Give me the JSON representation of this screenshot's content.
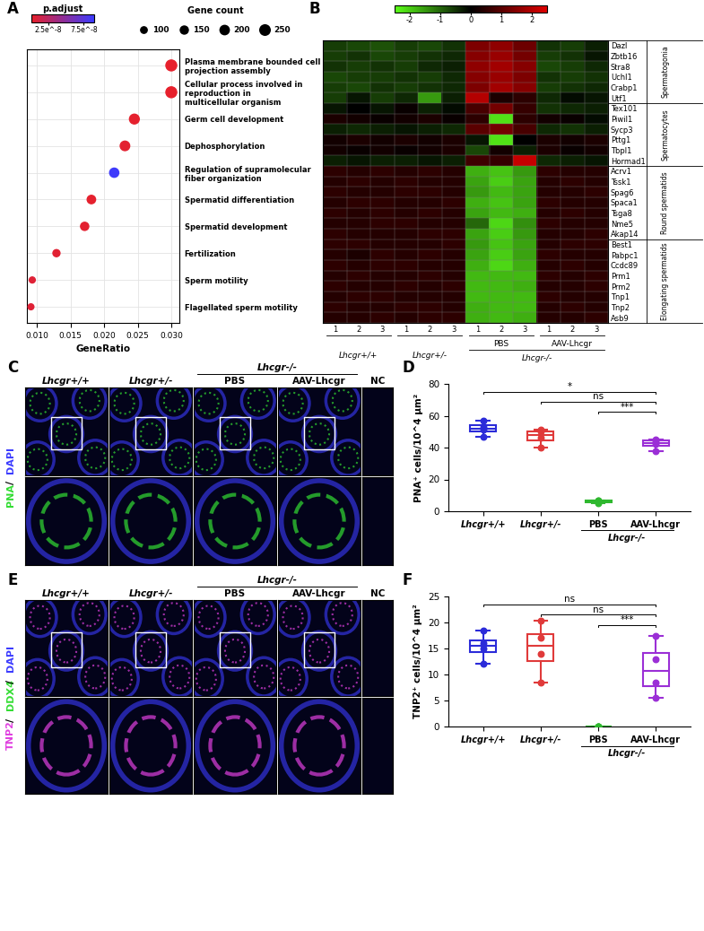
{
  "chart_data": [
    {
      "panel": "A",
      "type": "dot",
      "x_label": "GeneRatio",
      "categories": [
        "Plasma membrane bounded cell projection assembly",
        "Cellular process involved in reproduction in multicellular organism",
        "Germ cell development",
        "Dephosphorylation",
        "Regulation of supramolecular fiber organization",
        "Spermatid differentiation",
        "Spermatid development",
        "Fertilization",
        "Sperm motility",
        "Flagellated sperm motility"
      ],
      "values": [
        0.03,
        0.03,
        0.0245,
        0.0231,
        0.0215,
        0.0181,
        0.0171,
        0.0129,
        0.0093,
        0.0091
      ],
      "gene_count": [
        270,
        270,
        220,
        208,
        194,
        163,
        154,
        116,
        84,
        82
      ],
      "p_adjust": [
        2e-09,
        2e-09,
        3e-09,
        4e-09,
        8.8e-08,
        3e-09,
        4e-09,
        5e-09,
        6e-09,
        6e-09
      ],
      "color_legend_title": "p.adjust",
      "color_scale": [
        "#e8202a",
        "#3b3bff"
      ],
      "color_range": [
        1e-09,
        9e-08
      ],
      "color_ticks": [
        {
          "value": 2.5e-08,
          "label": "2.5e^-8"
        },
        {
          "value": 7.5e-08,
          "label": "7.5e^-8"
        }
      ],
      "size_legend_title": "Gene count",
      "size_legend": [
        100,
        150,
        200,
        250
      ],
      "xlim": [
        0.0085,
        0.0312
      ],
      "xticks": [
        {
          "value": 0.01,
          "label": "0.010"
        },
        {
          "value": 0.015,
          "label": "0.015"
        },
        {
          "value": 0.02,
          "label": "0.020"
        },
        {
          "value": 0.025,
          "label": "0.025"
        },
        {
          "value": 0.03,
          "label": "0.030"
        }
      ],
      "grid": true
    },
    {
      "panel": "B",
      "type": "heatmap",
      "color_scale": [
        "#5cff1a",
        "#000000",
        "#e00000"
      ],
      "color_range": [
        -2.5,
        2.5
      ],
      "color_ticks": [
        -2,
        -1,
        0,
        1,
        2
      ],
      "groups": [
        {
          "name": "Lhcgr+/+",
          "columns": [
            "1",
            "2",
            "3"
          ]
        },
        {
          "name": "Lhcgr+/-",
          "columns": [
            "1",
            "2",
            "3"
          ]
        },
        {
          "name": "PBS",
          "columns": [
            "1",
            "2",
            "3"
          ]
        },
        {
          "name": "AAV-Lhcgr",
          "columns": [
            "1",
            "2",
            "3"
          ]
        }
      ],
      "supergroup": {
        "name": "Lhcgr-/-",
        "groups": [
          "PBS",
          "AAV-Lhcgr"
        ]
      },
      "row_groups": [
        {
          "name": "Spermatogonia",
          "genes": [
            "Dazl",
            "Zbtb16",
            "Stra8",
            "Uchl1",
            "Crabp1",
            "Utf1"
          ],
          "cells": [
            [
              -0.6,
              -0.7,
              -0.8,
              -0.6,
              -0.7,
              -0.5,
              1.4,
              1.6,
              1.2,
              -0.5,
              -0.6,
              -0.3
            ],
            [
              -0.6,
              -0.5,
              -0.7,
              -0.6,
              -0.5,
              -0.4,
              1.5,
              1.7,
              1.3,
              -0.6,
              -0.5,
              -0.2
            ],
            [
              -0.5,
              -0.6,
              -0.5,
              -0.6,
              -0.4,
              -0.3,
              1.6,
              1.8,
              1.5,
              -0.7,
              -0.6,
              -0.4
            ],
            [
              -0.7,
              -0.6,
              -0.6,
              -0.5,
              -0.6,
              -0.4,
              1.5,
              1.7,
              1.4,
              -0.5,
              -0.6,
              -0.5
            ],
            [
              -0.6,
              -0.7,
              -0.5,
              -0.6,
              -0.5,
              -0.4,
              1.4,
              1.8,
              1.5,
              -0.6,
              -0.5,
              -0.4
            ],
            [
              -0.6,
              -0.2,
              -0.6,
              -0.4,
              -1.5,
              -0.3,
              2.0,
              0.3,
              0.5,
              -0.4,
              -0.1,
              -0.2
            ]
          ]
        },
        {
          "name": "Spermatocytes",
          "genes": [
            "Tex101",
            "Piwil1",
            "Sycp3",
            "Pttg1",
            "Tbpl1",
            "Hormad1"
          ],
          "cells": [
            [
              -0.2,
              0.0,
              -0.2,
              0.1,
              -0.3,
              -0.1,
              0.8,
              1.3,
              0.6,
              -0.5,
              -0.4,
              -0.3
            ],
            [
              0.3,
              0.2,
              0.1,
              0.2,
              0.3,
              0.1,
              0.5,
              -2.2,
              0.5,
              0.2,
              0.1,
              -0.1
            ],
            [
              -0.3,
              -0.4,
              -0.3,
              -0.2,
              -0.3,
              -0.4,
              1.0,
              1.3,
              0.8,
              -0.4,
              -0.5,
              -0.3
            ],
            [
              0.2,
              0.3,
              0.2,
              0.3,
              0.2,
              0.3,
              -0.2,
              -2.2,
              0.0,
              0.3,
              0.2,
              0.3
            ],
            [
              0.2,
              0.1,
              0.2,
              0.1,
              0.2,
              0.3,
              -0.7,
              0.2,
              -0.3,
              0.3,
              0.1,
              0.2
            ],
            [
              -0.3,
              -0.2,
              -0.3,
              -0.3,
              -0.2,
              -0.3,
              0.7,
              0.6,
              2.2,
              -0.4,
              -0.3,
              -0.2
            ]
          ]
        },
        {
          "name": "Round spermatids",
          "genes": [
            "Acrv1",
            "Tssk1",
            "Spag6",
            "Spaca1",
            "Tsga8",
            "Nme5",
            "Akap14"
          ],
          "cells": [
            [
              0.5,
              0.4,
              0.5,
              0.4,
              0.5,
              0.4,
              -1.7,
              -1.9,
              -1.5,
              0.5,
              0.4,
              0.4
            ],
            [
              0.4,
              0.5,
              0.4,
              0.5,
              0.4,
              0.4,
              -1.6,
              -2.0,
              -1.6,
              0.4,
              0.5,
              0.4
            ],
            [
              0.5,
              0.4,
              0.4,
              0.5,
              0.5,
              0.4,
              -1.5,
              -1.8,
              -1.6,
              0.4,
              0.4,
              0.5
            ],
            [
              0.4,
              0.5,
              0.5,
              0.4,
              0.4,
              0.5,
              -1.7,
              -1.9,
              -1.6,
              0.5,
              0.4,
              0.4
            ],
            [
              0.5,
              0.4,
              0.5,
              0.4,
              0.5,
              0.4,
              -1.6,
              -1.8,
              -1.7,
              0.4,
              0.5,
              0.4
            ],
            [
              0.4,
              0.4,
              0.5,
              0.5,
              0.4,
              0.4,
              -1.0,
              -2.1,
              -1.4,
              0.5,
              0.4,
              0.4
            ],
            [
              0.5,
              0.4,
              0.4,
              0.4,
              0.5,
              0.5,
              -1.6,
              -2.0,
              -1.5,
              0.4,
              0.4,
              0.5
            ]
          ]
        },
        {
          "name": "Elongating spermatids",
          "genes": [
            "Best1",
            "Pabpc1",
            "Ccdc89",
            "Prm1",
            "Prm2",
            "Tnp1",
            "Tnp2",
            "Asb9"
          ],
          "cells": [
            [
              0.5,
              0.5,
              0.4,
              0.4,
              0.4,
              0.5,
              -1.5,
              -1.9,
              -1.6,
              0.4,
              0.5,
              0.5
            ],
            [
              0.4,
              0.3,
              0.5,
              0.4,
              0.5,
              0.4,
              -1.6,
              -2.0,
              -1.6,
              0.5,
              0.4,
              0.4
            ],
            [
              0.5,
              0.4,
              0.5,
              0.5,
              0.4,
              0.4,
              -1.7,
              -2.1,
              -1.7,
              0.4,
              0.5,
              0.4
            ],
            [
              0.4,
              0.5,
              0.4,
              0.4,
              0.5,
              0.4,
              -1.8,
              -1.8,
              -1.8,
              0.5,
              0.4,
              0.5
            ],
            [
              0.5,
              0.4,
              0.4,
              0.5,
              0.4,
              0.5,
              -1.8,
              -1.8,
              -1.7,
              0.4,
              0.4,
              0.5
            ],
            [
              0.4,
              0.5,
              0.5,
              0.4,
              0.4,
              0.4,
              -1.8,
              -1.8,
              -1.8,
              0.5,
              0.4,
              0.4
            ],
            [
              0.5,
              0.4,
              0.4,
              0.5,
              0.5,
              0.4,
              -1.7,
              -1.8,
              -1.8,
              0.4,
              0.5,
              0.4
            ],
            [
              0.4,
              0.4,
              0.5,
              0.4,
              0.5,
              0.5,
              -1.7,
              -1.8,
              -1.7,
              0.4,
              0.4,
              0.5
            ]
          ]
        }
      ]
    },
    {
      "panel": "C",
      "type": "image_grid",
      "stains": [
        {
          "name": "PNA",
          "color": "#33dd33"
        },
        {
          "name": "DAPI",
          "color": "#3b3bff"
        }
      ],
      "separator": "/",
      "columns": [
        "Lhcgr+/+",
        "Lhcgr+/-",
        "PBS",
        "AAV-Lhcgr",
        "NC"
      ],
      "supergroup": {
        "name": "Lhcgr-/-",
        "columns": [
          "PBS",
          "AAV-Lhcgr"
        ]
      }
    },
    {
      "panel": "D",
      "type": "box",
      "y_label": "PNA⁺ cells/10^4 μm²",
      "categories": [
        "Lhcgr+/+",
        "Lhcgr+/-",
        "PBS",
        "AAV-Lhcgr"
      ],
      "supergroup": {
        "name": "Lhcgr-/-",
        "columns": [
          "PBS",
          "AAV-Lhcgr"
        ]
      },
      "values": [
        [
          47,
          51,
          53,
          57
        ],
        [
          40,
          46,
          50,
          51
        ],
        [
          5,
          6,
          6.5,
          7
        ],
        [
          38,
          42,
          44,
          45
        ]
      ],
      "colors": [
        "#2b2bd9",
        "#e03a3a",
        "#2fb82f",
        "#9b2fd6"
      ],
      "ylim": [
        0,
        80
      ],
      "yticks": [
        0,
        20,
        40,
        60,
        80
      ],
      "comparisons": [
        {
          "groups": [
            "Lhcgr+/+",
            "AAV-Lhcgr"
          ],
          "label": "*"
        },
        {
          "groups": [
            "Lhcgr+/-",
            "AAV-Lhcgr"
          ],
          "label": "ns"
        },
        {
          "groups": [
            "PBS",
            "AAV-Lhcgr"
          ],
          "label": "***"
        }
      ]
    },
    {
      "panel": "E",
      "type": "image_grid",
      "stains": [
        {
          "name": "TNP2",
          "color": "#e040e0"
        },
        {
          "name": "DDX4",
          "color": "#33dd33"
        },
        {
          "name": "DAPI",
          "color": "#3b3bff"
        }
      ],
      "separator": "/",
      "columns": [
        "Lhcgr+/+",
        "Lhcgr+/-",
        "PBS",
        "AAV-Lhcgr",
        "NC"
      ],
      "supergroup": {
        "name": "Lhcgr-/-",
        "columns": [
          "PBS",
          "AAV-Lhcgr"
        ]
      }
    },
    {
      "panel": "F",
      "type": "box",
      "y_label": "TNP2⁺ cells/10^4 μm²",
      "categories": [
        "Lhcgr+/+",
        "Lhcgr+/-",
        "PBS",
        "AAV-Lhcgr"
      ],
      "supergroup": {
        "name": "Lhcgr-/-",
        "columns": [
          "PBS",
          "AAV-Lhcgr"
        ]
      },
      "values": [
        [
          12,
          15,
          16,
          18.5
        ],
        [
          8.5,
          14,
          17,
          20.3
        ],
        [
          0,
          0,
          0,
          0
        ],
        [
          5.5,
          8.5,
          13,
          17.5
        ]
      ],
      "colors": [
        "#2b2bd9",
        "#e03a3a",
        "#2fb82f",
        "#9b2fd6"
      ],
      "ylim": [
        0,
        25
      ],
      "yticks": [
        0,
        5,
        10,
        15,
        20,
        25
      ],
      "comparisons": [
        {
          "groups": [
            "Lhcgr+/+",
            "AAV-Lhcgr"
          ],
          "label": "ns"
        },
        {
          "groups": [
            "Lhcgr+/-",
            "AAV-Lhcgr"
          ],
          "label": "ns"
        },
        {
          "groups": [
            "PBS",
            "AAV-Lhcgr"
          ],
          "label": "***"
        }
      ]
    }
  ]
}
